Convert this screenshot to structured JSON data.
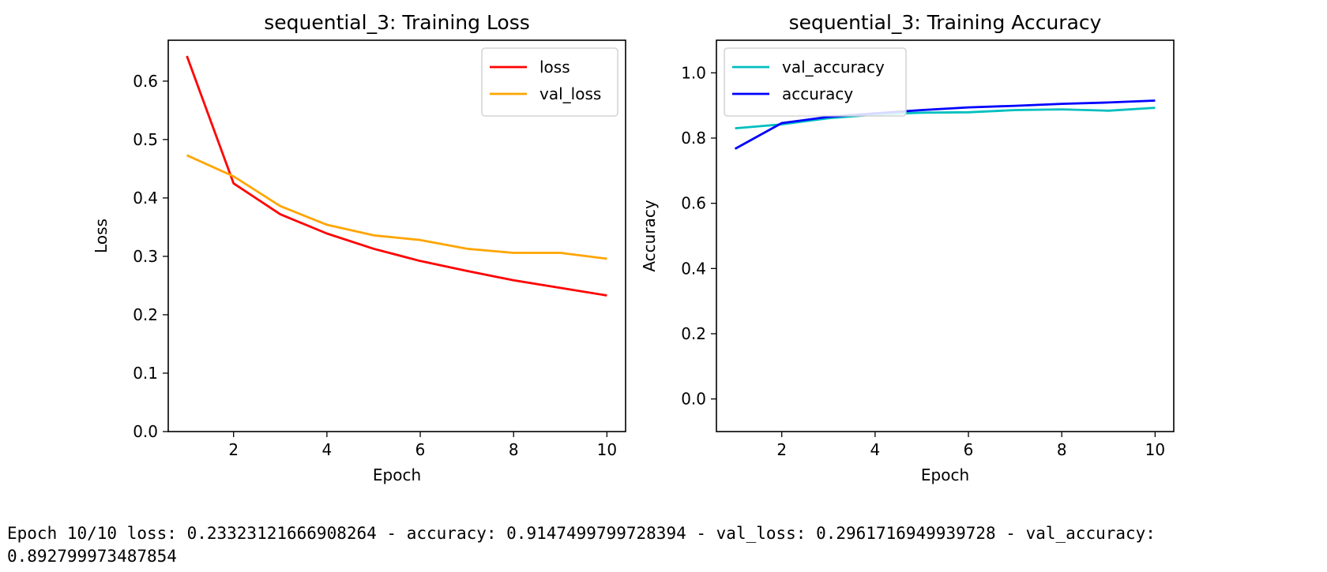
{
  "chart_data": [
    {
      "type": "line",
      "title": "sequential_3: Training Loss",
      "xlabel": "Epoch",
      "ylabel": "Loss",
      "xlim": [
        0.6,
        10.4
      ],
      "ylim": [
        0.0,
        0.67
      ],
      "xticks": [
        2,
        4,
        6,
        8,
        10
      ],
      "yticks": [
        0.0,
        0.1,
        0.2,
        0.3,
        0.4,
        0.5,
        0.6
      ],
      "legend_position": "top-right",
      "grid": false,
      "x": [
        1,
        2,
        3,
        4,
        5,
        6,
        7,
        8,
        9,
        10
      ],
      "series": [
        {
          "name": "loss",
          "color": "#ff0000",
          "values": [
            0.643,
            0.425,
            0.372,
            0.339,
            0.313,
            0.292,
            0.275,
            0.259,
            0.246,
            0.233
          ]
        },
        {
          "name": "val_loss",
          "color": "#ffa500",
          "values": [
            0.473,
            0.437,
            0.386,
            0.354,
            0.336,
            0.328,
            0.313,
            0.306,
            0.306,
            0.296
          ]
        }
      ]
    },
    {
      "type": "line",
      "title": "sequential_3: Training Accuracy",
      "xlabel": "Epoch",
      "ylabel": "Accuracy",
      "xlim": [
        0.6,
        10.4
      ],
      "ylim": [
        -0.1,
        1.1
      ],
      "xticks": [
        2,
        4,
        6,
        8,
        10
      ],
      "yticks": [
        0.0,
        0.2,
        0.4,
        0.6,
        0.8,
        1.0
      ],
      "legend_position": "top-left",
      "grid": false,
      "x": [
        1,
        2,
        3,
        4,
        5,
        6,
        7,
        8,
        9,
        10
      ],
      "series": [
        {
          "name": "val_accuracy",
          "color": "#00bfbf",
          "values": [
            0.83,
            0.842,
            0.861,
            0.872,
            0.878,
            0.879,
            0.886,
            0.888,
            0.884,
            0.893
          ]
        },
        {
          "name": "accuracy",
          "color": "#0000ff",
          "values": [
            0.767,
            0.846,
            0.865,
            0.876,
            0.886,
            0.894,
            0.899,
            0.905,
            0.909,
            0.915
          ]
        }
      ]
    }
  ],
  "log": {
    "line1": "Epoch 10/10 loss: 0.23323121666908264 - accuracy: 0.9147499799728394 - val_loss: 0.2961716949939728 - val_accuracy:",
    "line2": "0.892799973487854"
  }
}
